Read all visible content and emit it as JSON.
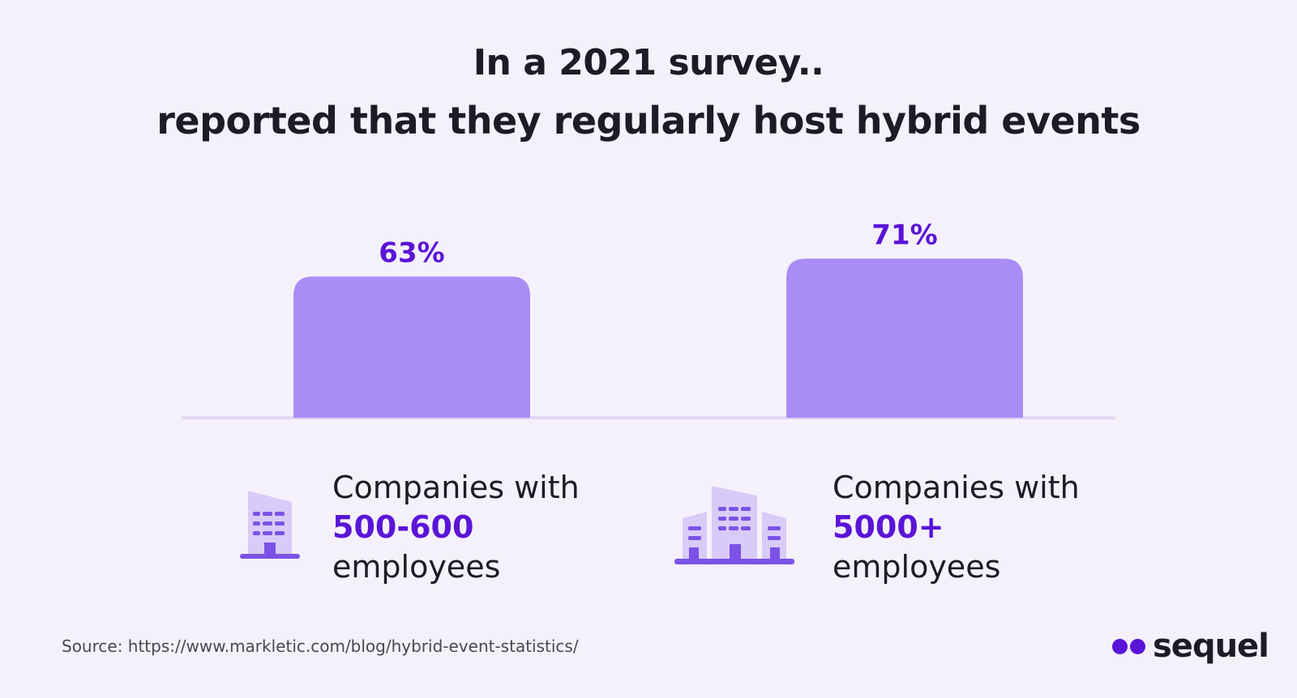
{
  "title_line1": "In a 2021 survey..",
  "title_line2": "reported that they regularly host hybrid events",
  "chart_data": {
    "type": "bar",
    "categories": [
      "500-600",
      "5000+"
    ],
    "values": [
      63,
      71
    ],
    "data_labels": [
      "63%",
      "71%"
    ],
    "ylim": [
      0,
      100
    ],
    "grid": false,
    "bar_color": "#a98df4",
    "label_color": "#5a14d8"
  },
  "categories": [
    {
      "prefix": "Companies with",
      "range": "500-600",
      "suffix": "employees",
      "icon": "office-building-icon"
    },
    {
      "prefix": "Companies with",
      "range": "5000+",
      "suffix": "employees",
      "icon": "city-buildings-icon"
    }
  ],
  "source": "Source: https://www.markletic.com/blog/hybrid-event-statistics/",
  "logo": {
    "text": "sequel"
  },
  "colors": {
    "background": "#f5f1fb",
    "accent": "#5a14d8",
    "bar": "#a98df4",
    "baseline": "#e1d8f2"
  }
}
